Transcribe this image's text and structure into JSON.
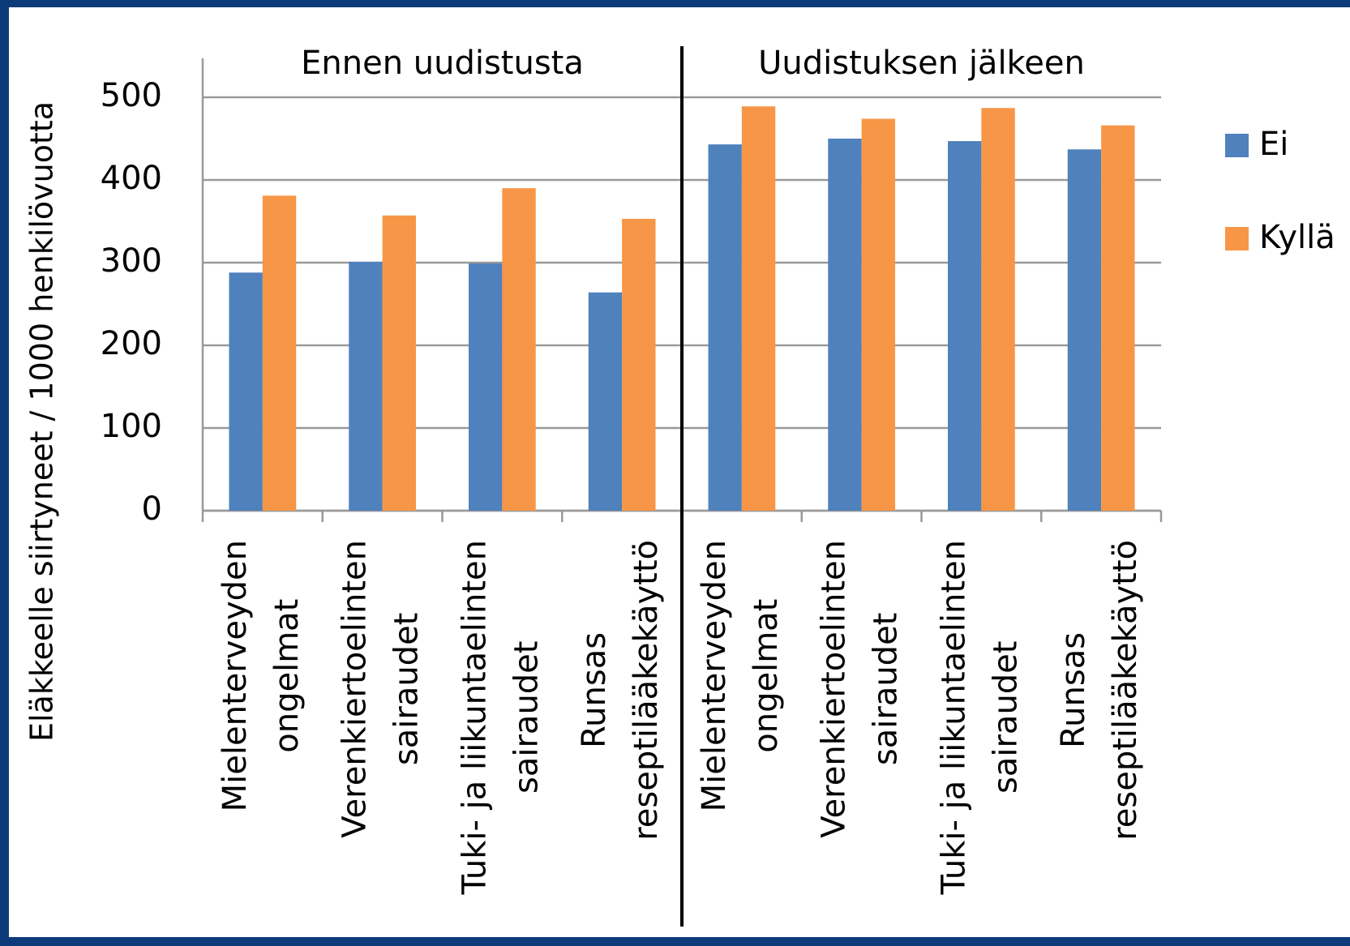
{
  "chart_data": {
    "type": "bar",
    "y_axis_label": "Eläkkeelle siirtyneet  / 1000 henkilövuotta",
    "group_labels": [
      "Ennen uudistusta",
      "Uudistuksen jälkeen"
    ],
    "categories": [
      [
        "Mielenterveyden",
        "ongelmat"
      ],
      [
        "Verenkiertoelinten",
        "sairaudet"
      ],
      [
        "Tuki- ja liikuntaelinten",
        "sairaudet"
      ],
      [
        "Runsas",
        "reseptilääkekäyttö"
      ],
      [
        "Mielenterveyden",
        "ongelmat"
      ],
      [
        "Verenkiertoelinten",
        "sairaudet"
      ],
      [
        "Tuki- ja liikuntaelinten",
        "sairaudet"
      ],
      [
        "Runsas",
        "reseptilääkekäyttö"
      ]
    ],
    "series": [
      {
        "name": "Ei",
        "color": "#4f81bd",
        "values": [
          288,
          301,
          299,
          264,
          443,
          450,
          447,
          437
        ]
      },
      {
        "name": "Kyllä",
        "color": "#f79646",
        "values": [
          381,
          357,
          390,
          353,
          489,
          474,
          487,
          466
        ]
      }
    ],
    "ylim": [
      0,
      500
    ],
    "yticks": [
      0,
      100,
      200,
      300,
      400,
      500
    ],
    "grid": true,
    "legend": "right"
  }
}
